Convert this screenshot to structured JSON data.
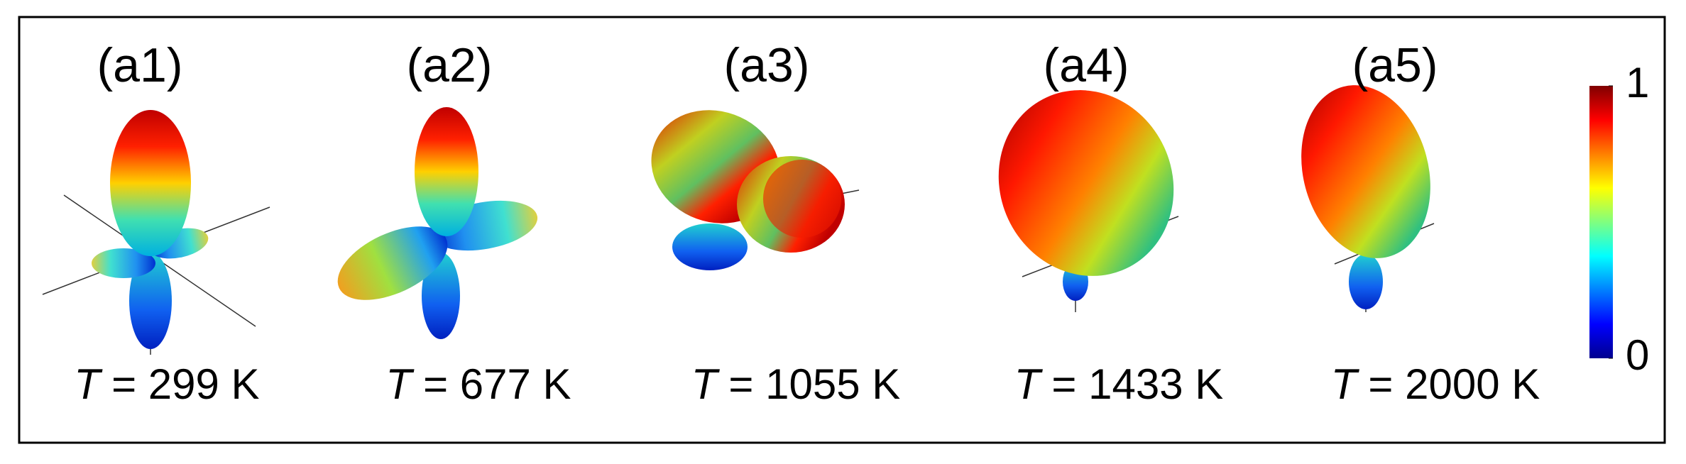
{
  "panels": [
    {
      "label": "(a1)",
      "symbol": "T",
      "caption": "= 299 K"
    },
    {
      "label": "(a2)",
      "symbol": "T",
      "caption": "= 677 K"
    },
    {
      "label": "(a3)",
      "symbol": "T",
      "caption": "= 1055 K"
    },
    {
      "label": "(a4)",
      "symbol": "T",
      "caption": "= 1433 K"
    },
    {
      "label": "(a5)",
      "symbol": "T",
      "caption": "= 2000 K"
    }
  ],
  "colorbar": {
    "range": [
      0,
      1
    ],
    "ticks": [
      0,
      1
    ]
  }
}
